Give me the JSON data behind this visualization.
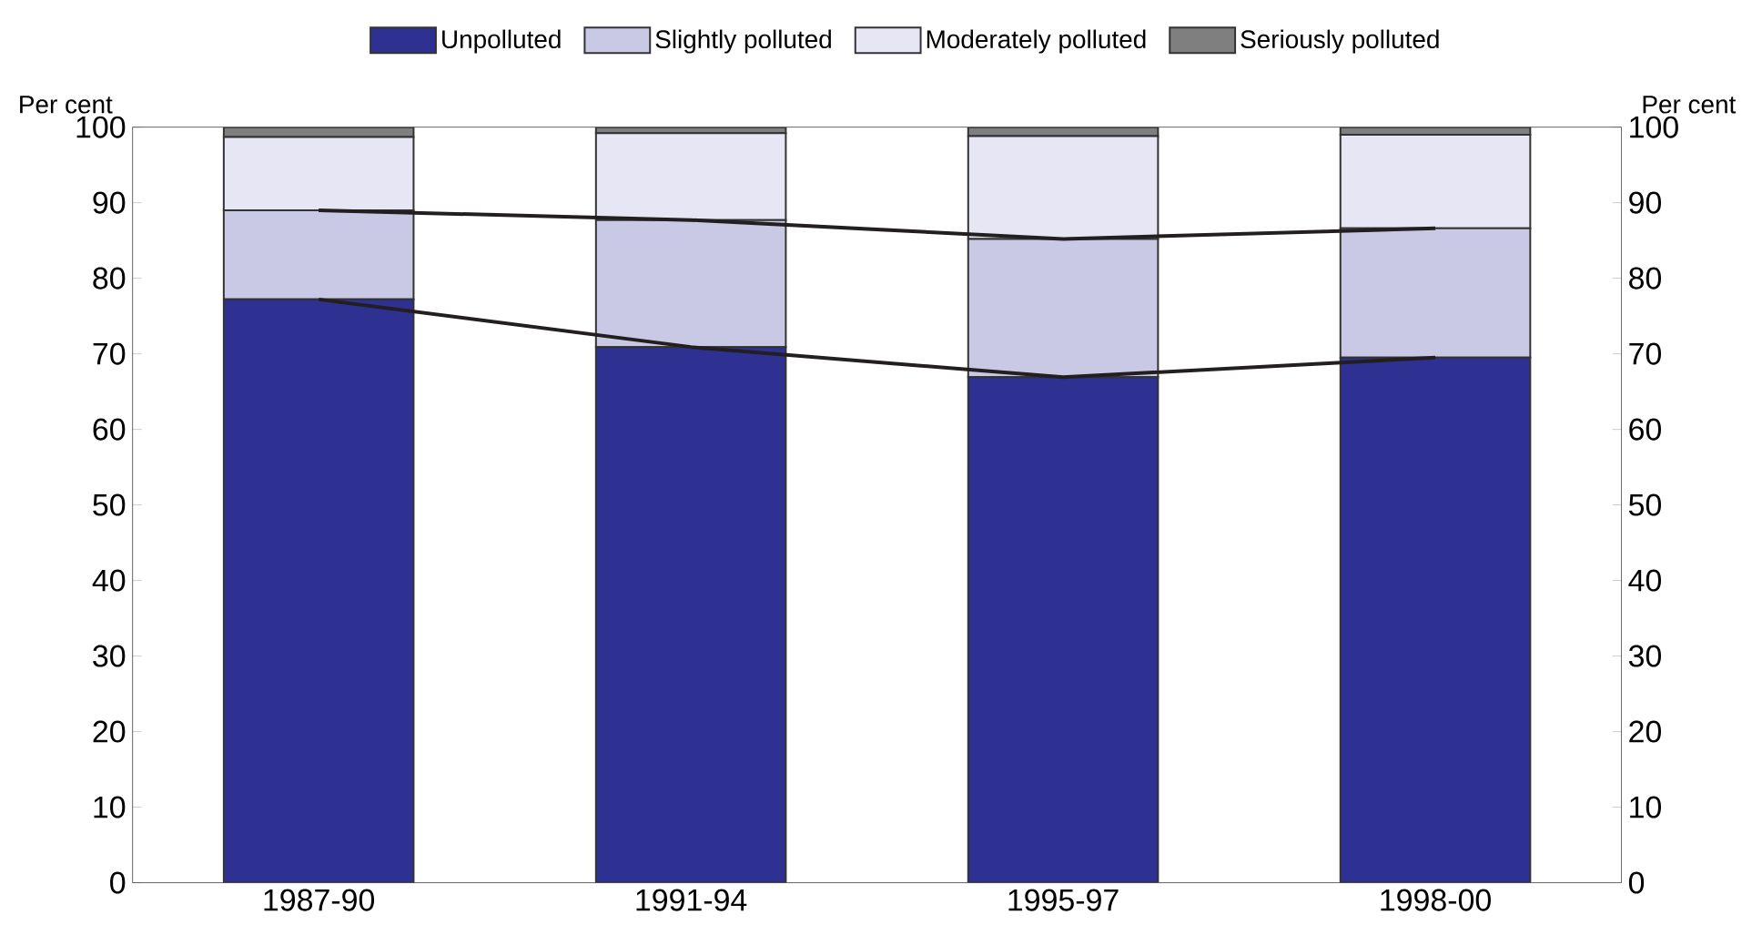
{
  "chart_data": {
    "type": "bar",
    "stacked": true,
    "categories": [
      "1987-90",
      "1991-94",
      "1995-97",
      "1998-00"
    ],
    "ylabel": "Per cent",
    "y2label": "Per cent",
    "ylim": [
      0,
      100
    ],
    "yticks": [
      0,
      10,
      20,
      30,
      40,
      50,
      60,
      70,
      80,
      90,
      100
    ],
    "y2lim": [
      0,
      100
    ],
    "y2ticks": [
      0,
      10,
      20,
      30,
      40,
      50,
      60,
      70,
      80,
      90,
      100
    ],
    "legend": "top",
    "series": [
      {
        "name": "Unpolluted",
        "color": "#2e3192",
        "values": [
          77.2,
          70.9,
          66.9,
          69.5
        ]
      },
      {
        "name": "Slightly polluted",
        "color": "#c9c9e6",
        "values": [
          11.8,
          16.8,
          18.3,
          17.1
        ]
      },
      {
        "name": "Moderately polluted",
        "color": "#e6e6f4",
        "values": [
          9.7,
          11.5,
          13.6,
          12.4
        ]
      },
      {
        "name": "Seriously polluted",
        "color": "#7f7f7f",
        "values": [
          1.3,
          0.8,
          1.2,
          1.0
        ]
      },
      {
        "type": "line",
        "color": "#231f20",
        "values": [
          77.2,
          70.9,
          66.9,
          69.5
        ]
      },
      {
        "type": "line",
        "color": "#231f20",
        "values": [
          89.0,
          87.7,
          85.2,
          86.6
        ]
      }
    ]
  }
}
